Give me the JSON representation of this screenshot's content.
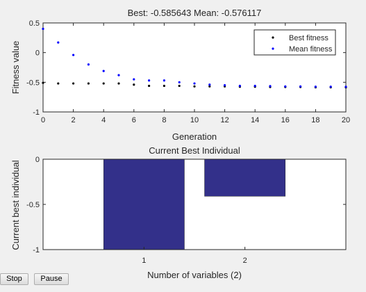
{
  "buttons": {
    "stop_label": "Stop",
    "pause_label": "Pause"
  },
  "colors": {
    "background": "#f0f0f0",
    "axes_face": "#ffffff",
    "best_marker": "#000000",
    "mean_marker": "#0000ff",
    "bar_fill": "#33308a"
  },
  "chart_data": [
    {
      "type": "scatter",
      "title": "Best: -0.585643 Mean: -0.576117",
      "xlabel": "Generation",
      "ylabel": "Fitness value",
      "xlim": [
        0,
        20
      ],
      "ylim": [
        -1,
        0.5
      ],
      "xticks": [
        0,
        2,
        4,
        6,
        8,
        10,
        12,
        14,
        16,
        18,
        20
      ],
      "yticks": [
        0.5,
        0,
        -0.5,
        -1
      ],
      "ytick_labels": [
        "0.5",
        "0",
        "-0.5",
        "-1"
      ],
      "grid": false,
      "legend_position": "top-right",
      "series": [
        {
          "name": "Best fitness",
          "marker": "dot",
          "color": "#000000",
          "x": [
            0,
            1,
            2,
            3,
            4,
            5,
            6,
            7,
            8,
            9,
            10,
            11,
            12,
            13,
            14,
            15,
            16,
            17,
            18,
            19,
            20
          ],
          "y": [
            -0.51,
            -0.52,
            -0.52,
            -0.52,
            -0.52,
            -0.52,
            -0.54,
            -0.56,
            -0.56,
            -0.56,
            -0.57,
            -0.57,
            -0.57,
            -0.575,
            -0.575,
            -0.58,
            -0.58,
            -0.58,
            -0.585,
            -0.585,
            -0.585643
          ]
        },
        {
          "name": "Mean fitness",
          "marker": "dot",
          "color": "#0000ff",
          "x": [
            0,
            1,
            2,
            3,
            4,
            5,
            6,
            7,
            8,
            9,
            10,
            11,
            12,
            13,
            14,
            15,
            16,
            17,
            18,
            19,
            20
          ],
          "y": [
            0.4,
            0.17,
            -0.04,
            -0.2,
            -0.31,
            -0.38,
            -0.45,
            -0.47,
            -0.47,
            -0.5,
            -0.52,
            -0.54,
            -0.55,
            -0.56,
            -0.56,
            -0.565,
            -0.57,
            -0.57,
            -0.575,
            -0.575,
            -0.576117
          ]
        }
      ]
    },
    {
      "type": "bar",
      "title": "Current Best Individual",
      "xlabel": "Number of variables (2)",
      "ylabel": "Current best individual",
      "xlim": [
        0,
        3
      ],
      "ylim": [
        -1,
        0
      ],
      "categories": [
        "1",
        "2"
      ],
      "values": [
        -1.0,
        -0.41
      ],
      "yticks": [
        0,
        -0.5,
        -1
      ],
      "ytick_labels": [
        "0",
        "-0.5",
        "-1"
      ],
      "grid": false
    }
  ]
}
